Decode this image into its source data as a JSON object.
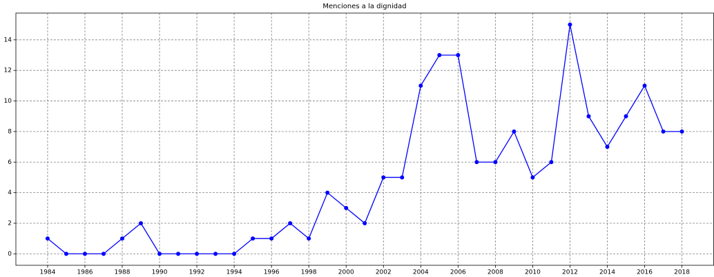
{
  "chart_data": {
    "type": "line",
    "title": "Menciones a la dignidad",
    "x": [
      1984,
      1985,
      1986,
      1987,
      1988,
      1989,
      1990,
      1991,
      1992,
      1993,
      1994,
      1995,
      1996,
      1997,
      1998,
      1999,
      2000,
      2001,
      2002,
      2003,
      2004,
      2005,
      2006,
      2007,
      2008,
      2009,
      2010,
      2011,
      2012,
      2013,
      2014,
      2015,
      2016,
      2017,
      2018
    ],
    "values": [
      1,
      0,
      0,
      0,
      1,
      2,
      0,
      0,
      0,
      0,
      0,
      1,
      1,
      2,
      1,
      4,
      3,
      2,
      5,
      5,
      11,
      13,
      13,
      6,
      6,
      8,
      5,
      6,
      15,
      9,
      7,
      9,
      11,
      8,
      8
    ],
    "color": "#0000ff",
    "xlim": [
      1982.3,
      2019.7
    ],
    "xticks": [
      1984,
      1986,
      1988,
      1990,
      1992,
      1994,
      1996,
      1998,
      2000,
      2002,
      2004,
      2006,
      2008,
      2010,
      2012,
      2014,
      2016,
      2018
    ],
    "ylim": [
      -0.75,
      15.75
    ],
    "yticks": [
      0,
      2,
      4,
      6,
      8,
      10,
      12,
      14
    ],
    "grid": true
  }
}
